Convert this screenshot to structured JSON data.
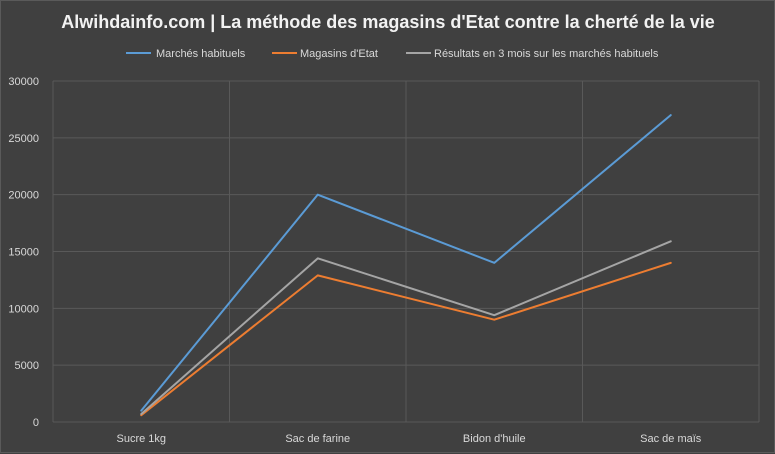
{
  "chart_data": {
    "type": "line",
    "title": "Alwihdainfo.com | La méthode des magasins d'Etat contre la cherté de la vie",
    "categories": [
      "Sucre 1kg",
      "Sac de farine",
      "Bidon d'huile",
      "Sac de maïs"
    ],
    "series": [
      {
        "name": "Marchés habituels",
        "color": "#5b9bd5",
        "values": [
          1000,
          20000,
          14000,
          27000
        ]
      },
      {
        "name": "Magasins d'Etat",
        "color": "#ed7d31",
        "values": [
          600,
          12900,
          9000,
          14000
        ]
      },
      {
        "name": "Résultats en 3 mois sur les marchés habituels",
        "color": "#a5a5a5",
        "values": [
          700,
          14400,
          9400,
          15900
        ]
      }
    ],
    "yticks": [
      "0",
      "5000",
      "10000",
      "15000",
      "20000",
      "25000",
      "30000"
    ],
    "ylim": [
      0,
      30000
    ],
    "grid": true,
    "legend_position": "top"
  }
}
